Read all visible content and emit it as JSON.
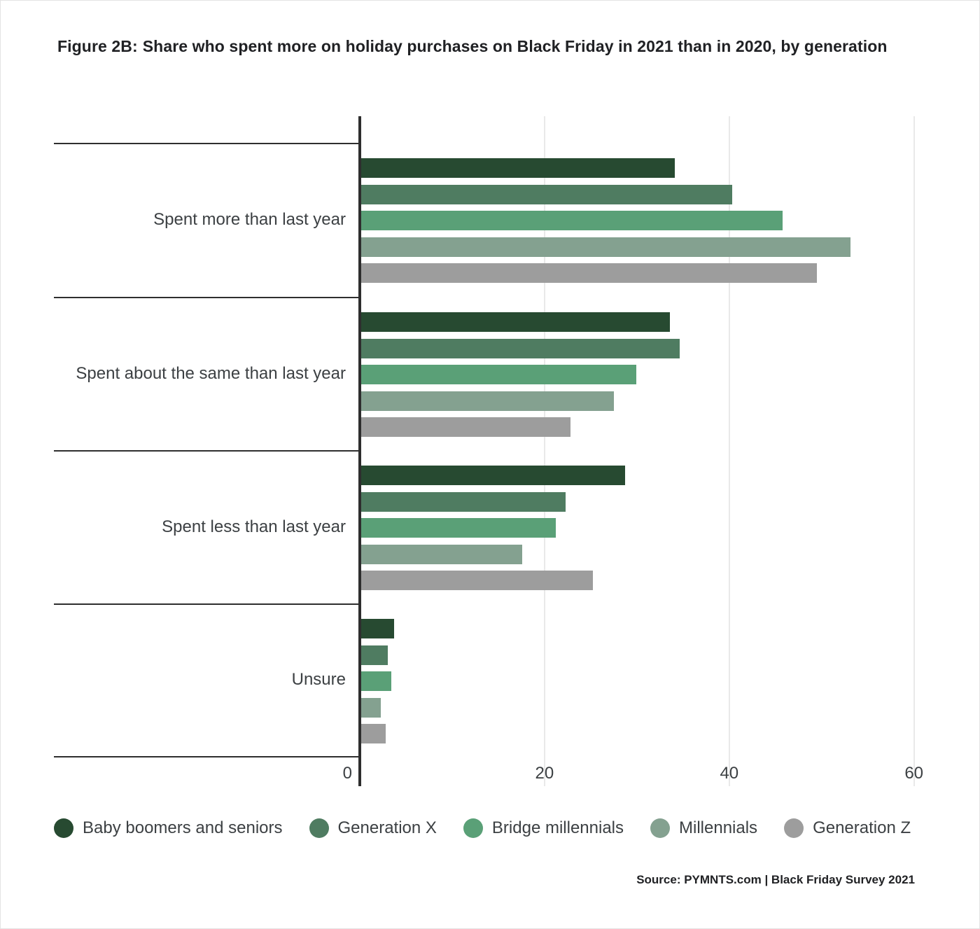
{
  "title": {
    "figure_label": "Figure 2B:",
    "text": "Share who spent more on holiday purchases on Black Friday in 2021 than in 2020, by generation"
  },
  "source": "Source: PYMNTS.com | Black Friday Survey 2021",
  "chart_data": {
    "type": "bar",
    "orientation": "horizontal",
    "title": "Figure 2B: Share who spent more on holiday purchases on Black Friday in 2021 than in 2020, by generation",
    "xlabel": "",
    "ylabel": "",
    "grid": true,
    "legend_position": "bottom",
    "categories": [
      "Spent more than last year",
      "Spent about the same than last year",
      "Spent less than last year",
      "Unsure"
    ],
    "series": [
      {
        "name": "Baby boomers and seniors",
        "color": "#274a31",
        "values": [
          34.1,
          33.6,
          28.7,
          3.7
        ]
      },
      {
        "name": "Generation X",
        "color": "#4f7c61",
        "values": [
          40.3,
          34.6,
          22.3,
          3.0
        ]
      },
      {
        "name": "Bridge millennials",
        "color": "#5aa077",
        "values": [
          45.8,
          29.9,
          21.2,
          3.4
        ]
      },
      {
        "name": "Millennials",
        "color": "#84a190",
        "values": [
          53.1,
          27.5,
          17.6,
          2.3
        ]
      },
      {
        "name": "Generation Z",
        "color": "#9d9d9d",
        "values": [
          49.5,
          22.8,
          25.2,
          2.8
        ]
      }
    ],
    "x_axis": {
      "ticks": [
        0,
        20,
        40,
        60
      ],
      "range": [
        0,
        62
      ],
      "unit": "percent"
    }
  },
  "colors": {
    "gridline": "#e9e9e9",
    "axis_line": "#2e2e2e",
    "separator_line": "#2e2e2e",
    "label_text": "#3c4043",
    "title_text": "#202124",
    "background": "#ffffff"
  }
}
